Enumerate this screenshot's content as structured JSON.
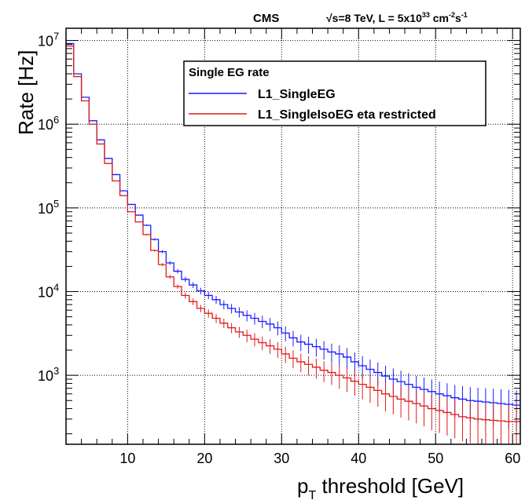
{
  "chart_data": {
    "type": "step",
    "header": {
      "experiment": "CMS",
      "energy": "√s=8 TeV, L = 5x10",
      "lumi_exp": "33",
      "lumi_unit1": " cm",
      "lumi_exp2": "-2",
      "lumi_unit2": "s",
      "lumi_exp3": "-1"
    },
    "xlabel_p": "p",
    "xlabel_sub": "T",
    "xlabel_rest": " threshold   [GeV]",
    "ylabel": "Rate [Hz]",
    "xlim": [
      2,
      61
    ],
    "ylim": [
      150,
      14000000
    ],
    "yscale": "log",
    "grid": true,
    "xticks": [
      "10",
      "20",
      "30",
      "40",
      "50",
      "60"
    ],
    "ytick_base": "10",
    "ytick_exponents": [
      "3",
      "4",
      "5",
      "6",
      "7"
    ],
    "legend": {
      "title": "Single EG rate",
      "position": "top-right"
    },
    "bin_edges_start": 2,
    "bin_width": 1,
    "series": [
      {
        "name": "L1_SingleEG",
        "color": "#1a1aff",
        "values": [
          9200000,
          4000000,
          2100000,
          1100000,
          650000,
          390000,
          250000,
          160000,
          110000,
          82000,
          62000,
          42000,
          30000,
          22000,
          17500,
          14000,
          12000,
          10200,
          9000,
          8000,
          7000,
          6300,
          5700,
          5200,
          4800,
          4400,
          4100,
          3700,
          3200,
          2800,
          2500,
          2350,
          2200,
          2050,
          1900,
          1800,
          1650,
          1450,
          1300,
          1180,
          1080,
          980,
          900,
          840,
          780,
          720,
          680,
          640,
          600,
          570,
          540,
          520,
          500,
          490,
          480,
          470,
          460,
          450,
          440
        ],
        "errors": [
          0.01,
          0.01,
          0.01,
          0.01,
          0.01,
          0.01,
          0.01,
          0.01,
          0.01,
          0.01,
          0.02,
          0.03,
          0.04,
          0.05,
          0.06,
          0.07,
          0.08,
          0.09,
          0.1,
          0.11,
          0.12,
          0.13,
          0.14,
          0.15,
          0.16,
          0.17,
          0.18,
          0.19,
          0.2,
          0.21,
          0.22,
          0.23,
          0.24,
          0.25,
          0.26,
          0.27,
          0.28,
          0.29,
          0.3,
          0.31,
          0.32,
          0.33,
          0.34,
          0.35,
          0.36,
          0.37,
          0.38,
          0.39,
          0.4,
          0.41,
          0.42,
          0.43,
          0.44,
          0.45,
          0.46,
          0.47,
          0.48,
          0.49,
          0.5
        ]
      },
      {
        "name": "L1_SingleIsoEG eta restricted",
        "color": "#e01a1a",
        "values": [
          8600000,
          3700000,
          1900000,
          1000000,
          580000,
          340000,
          210000,
          140000,
          90000,
          68000,
          48000,
          31000,
          21000,
          15000,
          11500,
          9000,
          7600,
          6300,
          5500,
          4800,
          4200,
          3700,
          3300,
          3000,
          2700,
          2450,
          2250,
          2050,
          1800,
          1600,
          1450,
          1350,
          1250,
          1150,
          1080,
          1000,
          930,
          850,
          780,
          720,
          660,
          600,
          560,
          520,
          490,
          460,
          430,
          400,
          380,
          360,
          340,
          320,
          310,
          300,
          295,
          290,
          285,
          280,
          280
        ],
        "errors": [
          0.01,
          0.01,
          0.01,
          0.01,
          0.01,
          0.01,
          0.01,
          0.01,
          0.01,
          0.01,
          0.02,
          0.03,
          0.04,
          0.05,
          0.06,
          0.08,
          0.09,
          0.1,
          0.11,
          0.12,
          0.13,
          0.14,
          0.15,
          0.17,
          0.18,
          0.19,
          0.2,
          0.21,
          0.22,
          0.24,
          0.25,
          0.26,
          0.27,
          0.28,
          0.29,
          0.31,
          0.32,
          0.33,
          0.34,
          0.35,
          0.36,
          0.38,
          0.39,
          0.4,
          0.41,
          0.42,
          0.43,
          0.45,
          0.46,
          0.47,
          0.48,
          0.49,
          0.5,
          0.52,
          0.53,
          0.54,
          0.55,
          0.56,
          0.57
        ]
      }
    ]
  }
}
